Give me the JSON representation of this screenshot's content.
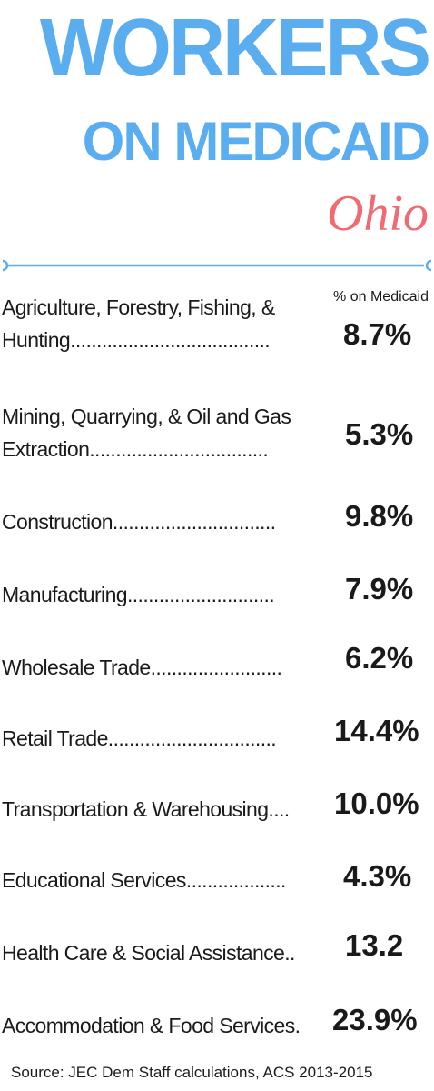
{
  "header": {
    "title_line1": "WORKERS",
    "title_line2": "ON MEDICAID",
    "state": "Ohio"
  },
  "colors": {
    "title": "#5aaef0",
    "state": "#f06a74",
    "divider": "#5aaef0",
    "text": "#1a1a1a"
  },
  "chart_data": {
    "type": "table",
    "column_header": "% on Medicaid",
    "rows": [
      {
        "lines": [
          "Agriculture, Forestry, Fishing, &",
          "Hunting......................................"
        ],
        "value": "8.7%"
      },
      {
        "lines": [
          "Mining, Quarrying, & Oil and Gas",
          "Extraction.................................."
        ],
        "value": "5.3%"
      },
      {
        "lines": [
          "Construction..............................."
        ],
        "value": "9.8%"
      },
      {
        "lines": [
          "Manufacturing............................"
        ],
        "value": "7.9%"
      },
      {
        "lines": [
          "Wholesale Trade........................."
        ],
        "value": "6.2%"
      },
      {
        "lines": [
          "Retail Trade................................"
        ],
        "value": "14.4%"
      },
      {
        "lines": [
          "Transportation & Warehousing...."
        ],
        "value": "10.0%"
      },
      {
        "lines": [
          "Educational Services..................."
        ],
        "value": "4.3%"
      },
      {
        "lines": [
          "Health Care & Social Assistance.."
        ],
        "value": "13.2"
      },
      {
        "lines": [
          "Accommodation & Food Services."
        ],
        "value": "23.9%"
      }
    ]
  },
  "footer": {
    "source": "Source: JEC Dem Staff calculations, ACS 2013-2015"
  }
}
